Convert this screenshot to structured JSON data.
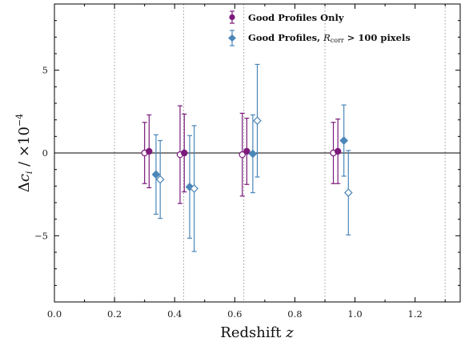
{
  "chart_data": {
    "type": "scatter",
    "xlabel": "Redshift z",
    "ylabel": "Δc_i / ×10^−4",
    "xlim": [
      0.0,
      1.35
    ],
    "ylim": [
      -9,
      9
    ],
    "x_ticks": [
      "0.0",
      "0.2",
      "0.4",
      "0.6",
      "0.8",
      "1.0",
      "1.2"
    ],
    "y_ticks": [
      "−5",
      "0",
      "5"
    ],
    "zero_line": 0,
    "bin_edges": [
      0.2,
      0.43,
      0.63,
      0.9,
      1.3
    ],
    "legend_position": "top-right",
    "series": [
      {
        "name": "Good Profiles Only",
        "color": "#7b1a7b",
        "marker": "circle",
        "points": [
          {
            "x": 0.3,
            "y": 0.0,
            "yerr": 1.85,
            "filled": false
          },
          {
            "x": 0.315,
            "y": 0.1,
            "yerr": 2.2,
            "filled": true
          },
          {
            "x": 0.418,
            "y": -0.1,
            "yerr": 2.95,
            "filled": false
          },
          {
            "x": 0.432,
            "y": 0.0,
            "yerr": 2.35,
            "filled": true
          },
          {
            "x": 0.625,
            "y": -0.1,
            "yerr": 2.5,
            "filled": false
          },
          {
            "x": 0.64,
            "y": 0.1,
            "yerr": 2.0,
            "filled": true
          },
          {
            "x": 0.928,
            "y": 0.0,
            "yerr": 1.85,
            "filled": false
          },
          {
            "x": 0.943,
            "y": 0.1,
            "yerr": 1.95,
            "filled": true
          }
        ]
      },
      {
        "name": "Good Profiles, R_corr > 100 pixels",
        "color": "#4a86b8",
        "marker": "diamond",
        "points": [
          {
            "x": 0.338,
            "y": -1.3,
            "yerr": 2.4,
            "filled": true
          },
          {
            "x": 0.352,
            "y": -1.6,
            "yerr": 2.35,
            "filled": false
          },
          {
            "x": 0.45,
            "y": -2.05,
            "yerr": 3.1,
            "filled": true
          },
          {
            "x": 0.465,
            "y": -2.15,
            "yerr": 3.8,
            "filled": false
          },
          {
            "x": 0.66,
            "y": -0.05,
            "yerr": 2.35,
            "filled": true
          },
          {
            "x": 0.675,
            "y": 1.95,
            "yerr": 3.4,
            "filled": false
          },
          {
            "x": 0.963,
            "y": 0.75,
            "yerr": 2.15,
            "filled": true
          },
          {
            "x": 0.978,
            "y": -2.4,
            "yerr": 2.55,
            "filled": false
          }
        ]
      }
    ]
  },
  "legend": {
    "item1": "Good Profiles Only",
    "item2_prefix": "Good Profiles, ",
    "item2_var": "R",
    "item2_sub": "corr",
    "item2_suffix": " > 100 pixels"
  },
  "axes": {
    "xlabel_text": "Redshift ",
    "xlabel_var": "z",
    "ylabel_delta": "Δ",
    "ylabel_c": "c",
    "ylabel_sub": "i",
    "ylabel_rest": " / ×10",
    "ylabel_exp": "−4"
  }
}
